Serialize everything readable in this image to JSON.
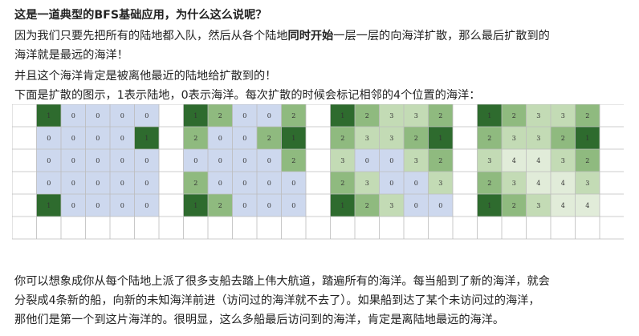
{
  "question": "这是一道典型的BFS基础应用，为什么这么说呢？",
  "para1": {
    "line1_prefix": "因为我们只要先把所有的陆地都入队，然后从各个陆地",
    "line1_bold": "同时开始",
    "line1_suffix": "一层一层的向海洋扩散，那么最后扩散到的",
    "line2": "海洋就是最远的海洋！"
  },
  "para2": "并且这个海洋肯定是被离他最近的陆地给扩散到的！",
  "para3": "下面是扩散的图示，1表示陆地，0表示海洋。每次扩散的时候会标记相邻的4个位置的海洋：",
  "colors": {
    "land": "#2e6b2e",
    "sea": "#cdd8ee",
    "level2": "#8fba7f",
    "level3": "#c3dbb5",
    "level4": "#e1ecd9",
    "grid": "#bcbcbc"
  },
  "grids": [
    {
      "cells": [
        [
          1,
          0,
          0,
          0,
          0
        ],
        [
          0,
          0,
          0,
          0,
          1
        ],
        [
          0,
          0,
          0,
          0,
          0
        ],
        [
          0,
          0,
          0,
          0,
          0
        ],
        [
          1,
          0,
          0,
          0,
          0
        ]
      ]
    },
    {
      "cells": [
        [
          1,
          2,
          0,
          0,
          2
        ],
        [
          2,
          0,
          0,
          2,
          1
        ],
        [
          0,
          0,
          0,
          0,
          2
        ],
        [
          2,
          0,
          0,
          0,
          0
        ],
        [
          1,
          2,
          0,
          0,
          0
        ]
      ]
    },
    {
      "cells": [
        [
          1,
          2,
          3,
          3,
          2
        ],
        [
          2,
          3,
          3,
          2,
          1
        ],
        [
          3,
          0,
          0,
          3,
          2
        ],
        [
          2,
          3,
          0,
          0,
          3
        ],
        [
          1,
          2,
          3,
          0,
          0
        ]
      ]
    },
    {
      "cells": [
        [
          1,
          2,
          3,
          3,
          2
        ],
        [
          2,
          3,
          3,
          2,
          1
        ],
        [
          3,
          4,
          4,
          3,
          2
        ],
        [
          2,
          3,
          4,
          4,
          3
        ],
        [
          1,
          2,
          3,
          4,
          4
        ]
      ]
    }
  ],
  "para4": {
    "line1": "你可以想象成你从每个陆地上派了很多支船去踏上伟大航道，踏遍所有的海洋。每当船到了新的海洋，就会",
    "line2": "分裂成4条新的船，向新的未知海洋前进（访问过的海洋就不去了）。如果船到达了某个未访问过的海洋，",
    "line3": "那他们是第一个到这片海洋的。很明显，这么多船最后访问到的海洋，肯定是离陆地最远的海洋。"
  }
}
